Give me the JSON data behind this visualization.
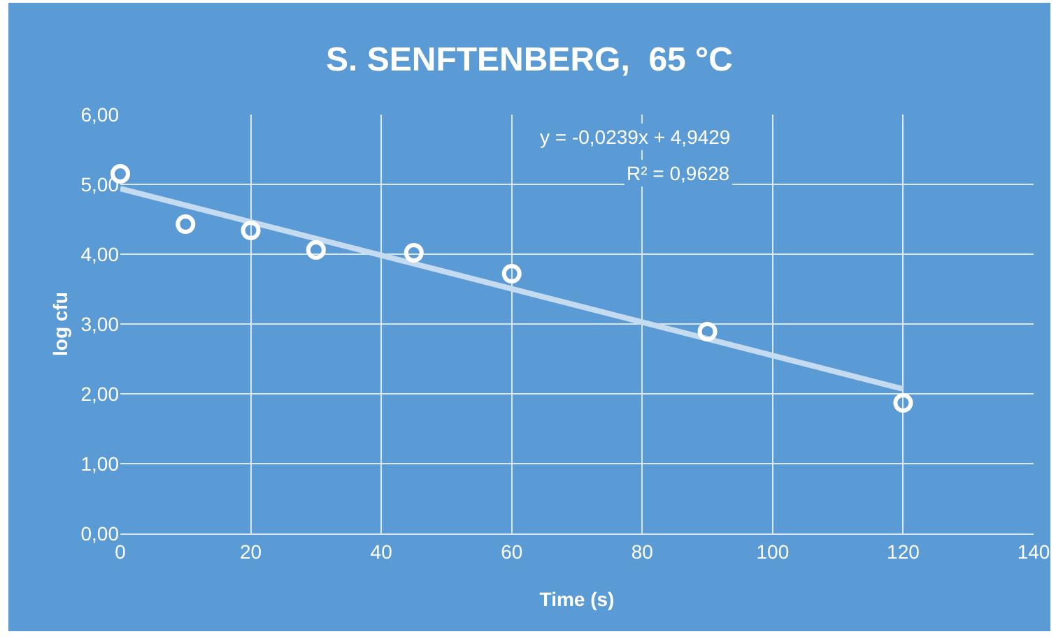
{
  "chart_data": {
    "type": "scatter",
    "title": "S. SENFTENBERG,  65 °C",
    "xlabel": "Time (s)",
    "ylabel": "log cfu",
    "x": [
      0,
      10,
      20,
      30,
      45,
      60,
      90,
      120
    ],
    "series": [
      {
        "color": "#ffffff",
        "values": [
          5.15,
          4.43,
          4.34,
          4.06,
          4.02,
          3.72,
          2.89,
          1.87
        ],
        "marker": "circle"
      },
      {
        "type": "line",
        "x": [
          0,
          120
        ],
        "color": "#c5dbf0",
        "values": [
          4.94,
          2.07
        ],
        "marker": "none"
      }
    ],
    "xlim": [
      0,
      140
    ],
    "xticks": [
      0,
      20,
      40,
      60,
      80,
      100,
      120,
      140
    ],
    "ylim": [
      0,
      6
    ],
    "yticks": [
      {
        "value": 0,
        "label": "0,00"
      },
      {
        "value": 1,
        "label": "1,00"
      },
      {
        "value": 2,
        "label": "2,00"
      },
      {
        "value": 3,
        "label": "3,00"
      },
      {
        "value": 4,
        "label": "4,00"
      },
      {
        "value": 5,
        "label": "5,00"
      },
      {
        "value": 6,
        "label": "6,00"
      }
    ],
    "annotations": [
      "y = -0,0239x + 4,9429",
      "R² = 0,9628"
    ],
    "grid": true
  }
}
